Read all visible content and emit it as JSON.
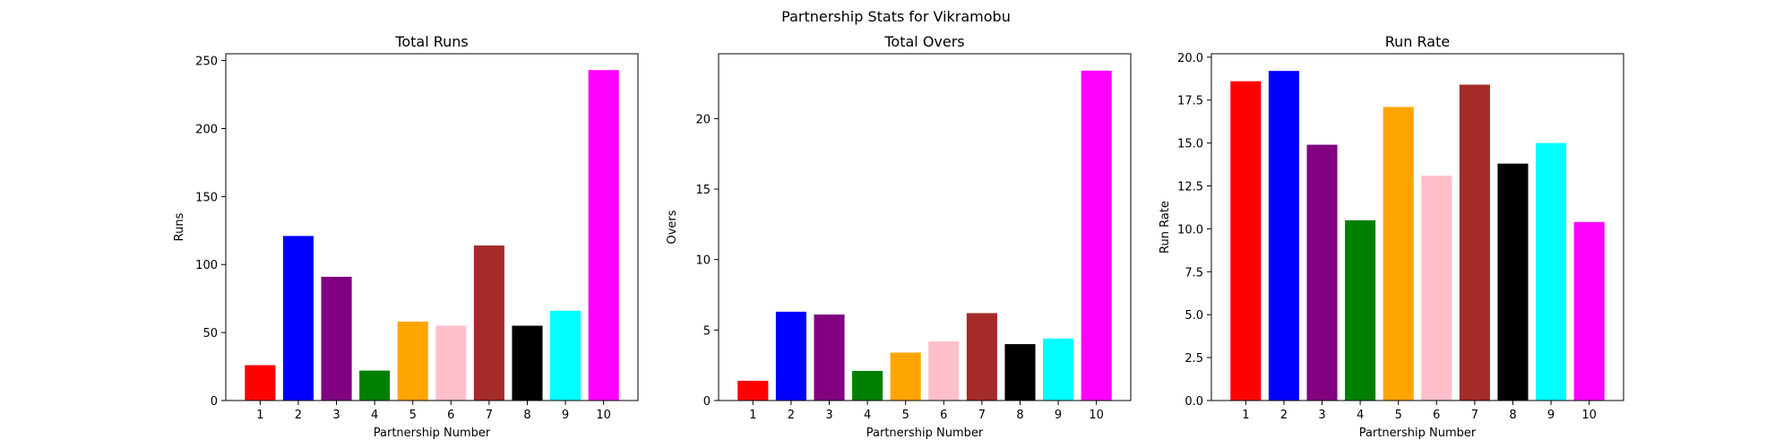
{
  "figure_title": "Partnership Stats for Vikramobu",
  "colors": [
    "#ff0000",
    "#0000ff",
    "#800080",
    "#008000",
    "#ffa500",
    "#ffc0cb",
    "#a52a2a",
    "#000000",
    "#00ffff",
    "#ff00ff"
  ],
  "chart_data": [
    {
      "type": "bar",
      "title": "Total Runs",
      "xlabel": "Partnership Number",
      "ylabel": "Runs",
      "categories": [
        "1",
        "2",
        "3",
        "4",
        "5",
        "6",
        "7",
        "8",
        "9",
        "10"
      ],
      "values": [
        26,
        121,
        91,
        22,
        58,
        55,
        114,
        55,
        66,
        243
      ],
      "ylim": [
        0,
        255
      ],
      "yticks": [
        0,
        50,
        100,
        150,
        200,
        250
      ],
      "ytick_labels": [
        "0",
        "50",
        "100",
        "150",
        "200",
        "250"
      ],
      "grid": false
    },
    {
      "type": "bar",
      "title": "Total Overs",
      "xlabel": "Partnership Number",
      "ylabel": "Overs",
      "categories": [
        "1",
        "2",
        "3",
        "4",
        "5",
        "6",
        "7",
        "8",
        "9",
        "10"
      ],
      "values": [
        1.4,
        6.3,
        6.1,
        2.1,
        3.4,
        4.2,
        6.2,
        4.0,
        4.4,
        23.4
      ],
      "ylim": [
        0,
        24.6
      ],
      "yticks": [
        0,
        5,
        10,
        15,
        20
      ],
      "ytick_labels": [
        "0",
        "5",
        "10",
        "15",
        "20"
      ],
      "grid": false
    },
    {
      "type": "bar",
      "title": "Run Rate",
      "xlabel": "Partnership Number",
      "ylabel": "Run Rate",
      "categories": [
        "1",
        "2",
        "3",
        "4",
        "5",
        "6",
        "7",
        "8",
        "9",
        "10"
      ],
      "values": [
        18.6,
        19.2,
        14.9,
        10.5,
        17.1,
        13.1,
        18.4,
        13.8,
        15.0,
        10.4
      ],
      "ylim": [
        0,
        20.2
      ],
      "yticks": [
        0,
        2.5,
        5,
        7.5,
        10,
        12.5,
        15,
        17.5,
        20
      ],
      "ytick_labels": [
        "0.0",
        "2.5",
        "5.0",
        "7.5",
        "10.0",
        "12.5",
        "15.0",
        "17.5",
        "20.0"
      ],
      "grid": false
    }
  ]
}
